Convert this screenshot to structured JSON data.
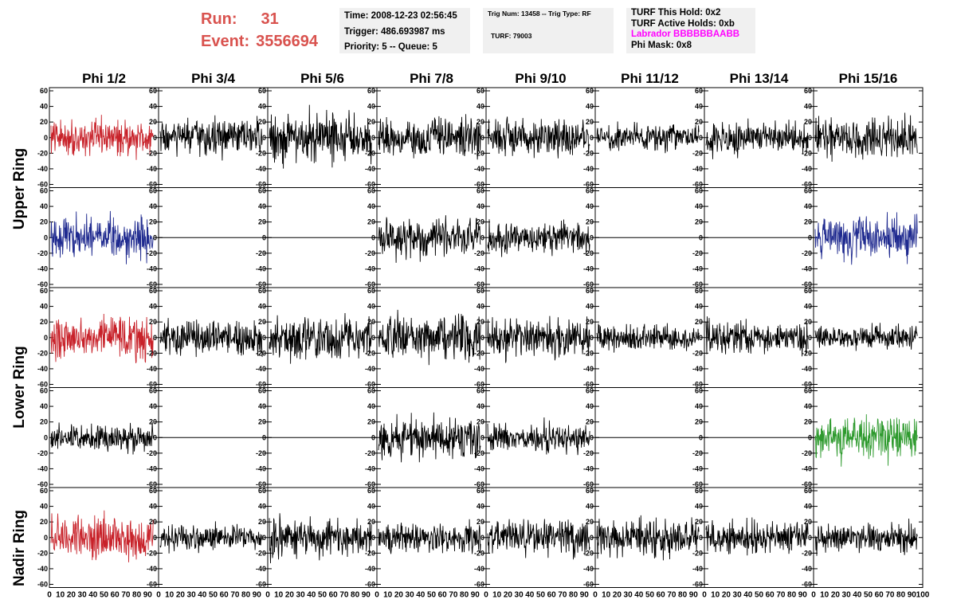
{
  "header": {
    "run_label": "Run:",
    "run_value": "31",
    "event_label": "Event:",
    "event_value": "3556694"
  },
  "info_box_1": {
    "time": "Time: 2008-12-23 02:56:45",
    "trigger": "Trigger: 486.693987 ms",
    "priority": "Priority: 5 -- Queue: 5"
  },
  "info_box_2": {
    "trig": "Trig Num: 13458 -- Trig Type: RF",
    "turf": "TURF: 79003"
  },
  "info_box_3": {
    "this_hold": "TURF This Hold: 0x2",
    "active_holds": "TURF Active Holds: 0xb",
    "labrador": "Labrador BBBBBBAABB",
    "phi_mask": "Phi Mask: 0x8"
  },
  "colors": {
    "red": "#c8222a",
    "blue": "#1f2a8f",
    "green": "#2e9a2e",
    "black": "#000000",
    "run_text": "#d9534f",
    "labrador_text": "#ff00ff"
  },
  "column_headers": [
    "Phi 1/2",
    "Phi 3/4",
    "Phi 5/6",
    "Phi 7/8",
    "Phi 9/10",
    "Phi 11/12",
    "Phi 13/14",
    "Phi 15/16"
  ],
  "ring_labels": [
    "Upper Ring",
    "Lower Ring",
    "Nadir Ring"
  ],
  "y_ticks": [
    "60",
    "40",
    "20",
    "0",
    "-20",
    "-40",
    "-60"
  ],
  "x_ticks": [
    "0",
    "10",
    "20",
    "30",
    "40",
    "50",
    "60",
    "70",
    "80",
    "90",
    "100"
  ],
  "chart_data": {
    "type": "line",
    "x_range": [
      0,
      100
    ],
    "y_range": [
      -60,
      60
    ],
    "rows": [
      {
        "ring": "Upper Ring",
        "colors": [
          "red",
          "black",
          "black",
          "black",
          "black",
          "black",
          "black",
          "black"
        ],
        "flat": [
          false,
          false,
          false,
          false,
          false,
          false,
          false,
          false
        ],
        "amplitude": [
          12,
          13,
          18,
          13,
          13,
          9,
          11,
          14
        ]
      },
      {
        "ring": "Upper Ring",
        "colors": [
          "blue",
          "black",
          "black",
          "black",
          "black",
          "black",
          "black",
          "blue"
        ],
        "flat": [
          false,
          true,
          true,
          false,
          false,
          true,
          true,
          false
        ],
        "amplitude": [
          14,
          0,
          0,
          14,
          10,
          0,
          0,
          16
        ]
      },
      {
        "ring": "Lower Ring",
        "colors": [
          "red",
          "black",
          "black",
          "black",
          "black",
          "black",
          "black",
          "black"
        ],
        "flat": [
          false,
          false,
          false,
          false,
          false,
          false,
          false,
          false
        ],
        "amplitude": [
          14,
          12,
          15,
          15,
          13,
          9,
          11,
          8
        ]
      },
      {
        "ring": "Lower Ring",
        "colors": [
          "black",
          "black",
          "black",
          "black",
          "black",
          "black",
          "black",
          "green"
        ],
        "flat": [
          false,
          true,
          true,
          false,
          false,
          true,
          true,
          false
        ],
        "amplitude": [
          9,
          0,
          0,
          14,
          10,
          0,
          0,
          15
        ]
      },
      {
        "ring": "Nadir Ring",
        "colors": [
          "red",
          "black",
          "black",
          "black",
          "black",
          "black",
          "black",
          "black"
        ],
        "flat": [
          false,
          false,
          false,
          false,
          false,
          false,
          false,
          false
        ],
        "amplitude": [
          14,
          9,
          14,
          10,
          12,
          13,
          11,
          10
        ]
      }
    ]
  }
}
